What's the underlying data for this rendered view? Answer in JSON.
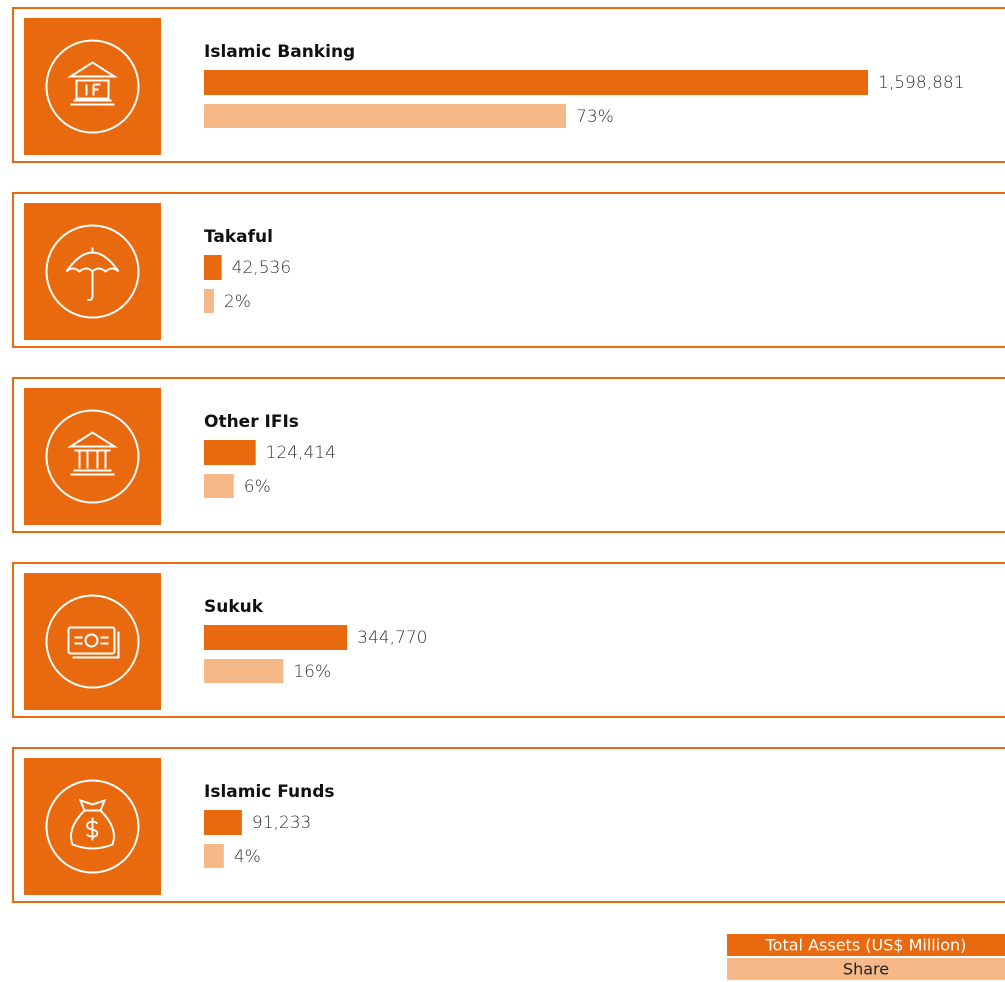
{
  "chart_data": {
    "type": "bar",
    "categories": [
      "Islamic Banking",
      "Takaful",
      "Other IFIs",
      "Sukuk",
      "Islamic Funds"
    ],
    "series": [
      {
        "name": "Total Assets (US$ Million)",
        "color": "#e8690e",
        "values": [
          1598881,
          42536,
          124414,
          344770,
          91233
        ],
        "value_labels": [
          "1,598,881",
          "42,536",
          "124,414",
          "344,770",
          "91,233"
        ]
      },
      {
        "name": "Share",
        "color": "#f6b886",
        "values": [
          73,
          2,
          6,
          16,
          4
        ],
        "value_labels": [
          "73%",
          "2%",
          "6%",
          "16%",
          "4%"
        ]
      }
    ]
  }
}
